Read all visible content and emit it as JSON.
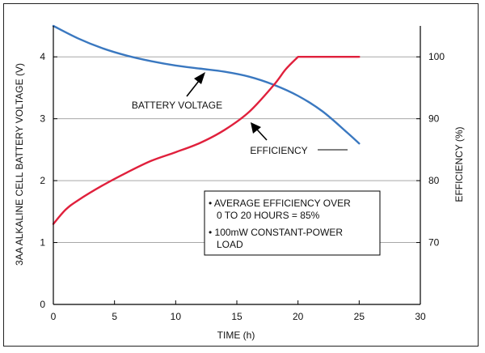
{
  "chart_data": {
    "type": "line",
    "xlabel": "TIME (h)",
    "ylabel_left": "3AA ALKALINE CELL BATTERY VOLTAGE (V)",
    "ylabel_right": "EFFICIENCY (%)",
    "xlim": [
      0,
      30
    ],
    "ylim_left": [
      0,
      4.5
    ],
    "ylim_right": [
      60,
      105
    ],
    "x_ticks": [
      0,
      5,
      10,
      15,
      20,
      25,
      30
    ],
    "y_ticks_left": [
      0,
      1,
      2,
      3,
      4
    ],
    "y_ticks_right": [
      70,
      80,
      90,
      100
    ],
    "grid": "horizontal",
    "series": [
      {
        "name": "BATTERY VOLTAGE",
        "axis": "left",
        "color": "#3a78c0",
        "x": [
          0,
          2,
          4,
          6,
          8,
          10,
          12,
          14,
          16,
          18,
          20,
          22,
          24,
          25
        ],
        "y": [
          4.5,
          4.3,
          4.14,
          4.02,
          3.93,
          3.86,
          3.81,
          3.76,
          3.68,
          3.55,
          3.37,
          3.12,
          2.78,
          2.6
        ]
      },
      {
        "name": "EFFICIENCY",
        "axis": "right",
        "color": "#e0203c",
        "x": [
          0,
          1,
          2,
          4,
          6,
          8,
          10,
          12,
          14,
          16,
          18,
          19,
          20,
          22,
          25
        ],
        "y": [
          73,
          75.3,
          76.8,
          79.2,
          81.3,
          83.2,
          84.6,
          86.1,
          88.2,
          91.1,
          95.4,
          98,
          100,
          100,
          100
        ]
      }
    ],
    "annotations": [
      {
        "text": "BATTERY VOLTAGE",
        "arrow_to": [
          12.5,
          3.82
        ]
      },
      {
        "text": "EFFICIENCY",
        "arrow_to": [
          16,
          89
        ]
      }
    ],
    "note_lines": [
      "• AVERAGE EFFICIENCY OVER",
      "0 TO 20 HOURS = 85%",
      "• 100mW CONSTANT-POWER",
      "LOAD"
    ]
  }
}
